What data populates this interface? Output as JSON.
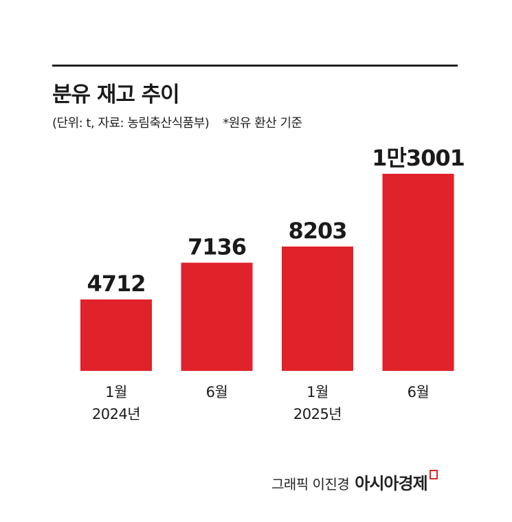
{
  "header": {
    "title": "분유 재고 추이",
    "subtitle": "(단위: t, 자료: 농림축산식품부)",
    "note": "*원유 환산 기준"
  },
  "credit": {
    "text": "그래픽 이진경",
    "brand": "아시아경제"
  },
  "colors": {
    "bar": "#e0222a",
    "text": "#1a1a1a"
  },
  "chart_data": {
    "type": "bar",
    "categories": [
      "1월",
      "6월",
      "1월",
      "6월"
    ],
    "category_years": [
      "2024년",
      "",
      "2025년",
      ""
    ],
    "values": [
      4712,
      7136,
      8203,
      13001
    ],
    "data_labels": [
      "4712",
      "7136",
      "8203",
      "1만3001"
    ],
    "ylim": [
      0,
      13001
    ],
    "grid": false,
    "legend": "none"
  }
}
